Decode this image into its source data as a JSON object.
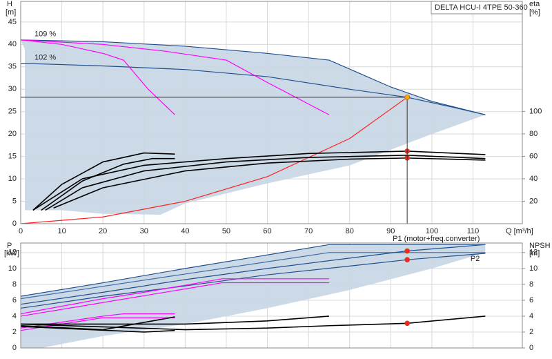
{
  "chart_data": [
    {
      "type": "line",
      "title": "DELTA HCU-I 4TPE 50-360",
      "y_label": "H",
      "y_unit": "[m]",
      "y2_label": "eta",
      "y2_unit": "[%]",
      "x_label": "Q [m³/h]",
      "xlim": [
        0,
        122
      ],
      "xticks": [
        0,
        10,
        20,
        30,
        40,
        50,
        60,
        70,
        80,
        90,
        100,
        110
      ],
      "ylim": [
        0,
        49.6
      ],
      "yticks": [
        0,
        5,
        10,
        15,
        20,
        25,
        30,
        35,
        40,
        45
      ],
      "y2lim": [
        0,
        198
      ],
      "y2ticks": [
        20,
        40,
        60,
        80,
        100
      ],
      "grid": true,
      "series": [
        {
          "type": "area",
          "color": "#c9d7e5",
          "x": [
            0,
            20,
            40,
            60,
            75,
            90,
            100,
            113,
            100,
            80,
            60,
            40,
            34,
            20,
            10,
            1,
            1
          ],
          "values": [
            41,
            40.6,
            39.6,
            38,
            36.5,
            30.5,
            27.3,
            24.3,
            20,
            13,
            9,
            4.5,
            2,
            2.2,
            3,
            3,
            39
          ]
        },
        {
          "type": "line",
          "name": "109 %",
          "label_position": "start",
          "color": "#1f4e8c",
          "x": [
            0,
            20,
            40,
            60,
            75,
            90,
            100,
            113
          ],
          "values": [
            41,
            40.6,
            39.6,
            38,
            36.5,
            30.5,
            27.3,
            24.3
          ]
        },
        {
          "type": "line",
          "name": "102 %",
          "label_position": "start",
          "color": "#1f4e8c",
          "x": [
            0,
            20,
            40,
            60,
            80,
            94,
            105,
            113
          ],
          "values": [
            35.8,
            35.2,
            34.4,
            32.8,
            30,
            28.2,
            26,
            24.3
          ]
        },
        {
          "type": "line",
          "color": "#ff00ff",
          "x": [
            0,
            10,
            20,
            25,
            31,
            37.5
          ],
          "values": [
            41,
            40,
            38,
            36.5,
            30,
            24.3
          ]
        },
        {
          "type": "line",
          "color": "#ff00ff",
          "x": [
            0,
            20,
            35,
            50,
            60,
            75
          ],
          "values": [
            41,
            40,
            38.5,
            36.5,
            31.5,
            24.3
          ]
        },
        {
          "type": "line",
          "color": "#ff2020",
          "x": [
            0,
            20,
            40,
            60,
            80,
            94
          ],
          "values": [
            0,
            1.5,
            5,
            10.5,
            19,
            28.2
          ]
        },
        {
          "type": "line",
          "axis": "y2",
          "color": "#000000",
          "x": [
            3,
            10,
            20,
            30,
            37.5
          ],
          "values": [
            12,
            35,
            55,
            63,
            62
          ]
        },
        {
          "type": "line",
          "axis": "y2",
          "color": "#000000",
          "x": [
            5,
            15,
            25,
            32,
            37.5
          ],
          "values": [
            12,
            38,
            53,
            58,
            58
          ]
        },
        {
          "type": "line",
          "axis": "y2",
          "color": "#000000",
          "x": [
            3,
            15,
            30,
            50,
            70,
            94,
            113
          ],
          "values": [
            12,
            40,
            52,
            58,
            62.5,
            64.6,
            61.5
          ]
        },
        {
          "type": "line",
          "axis": "y2",
          "color": "#000000",
          "x": [
            6,
            15,
            30,
            50,
            70,
            94,
            113
          ],
          "values": [
            12,
            32,
            47,
            55,
            59,
            61,
            58
          ]
        },
        {
          "type": "line",
          "axis": "y2",
          "color": "#000000",
          "x": [
            8,
            20,
            40,
            60,
            80,
            94,
            113
          ],
          "values": [
            14,
            32,
            47,
            54,
            57.5,
            58.5,
            56.6
          ]
        },
        {
          "type": "points",
          "axis": "y2",
          "color": "#ff2020",
          "x": [
            94,
            94
          ],
          "values": [
            64.6,
            58.5
          ]
        },
        {
          "type": "points",
          "droplines": true,
          "color": "#ffa500",
          "x": [
            94
          ],
          "values": [
            28.2
          ]
        }
      ]
    },
    {
      "type": "line",
      "y_label": "P",
      "y_unit": "[kW]",
      "y2_label": "NPSH",
      "y2_unit": "[m]",
      "xlim": [
        0,
        122
      ],
      "ylim": [
        0,
        13.2
      ],
      "yticks": [
        0,
        2,
        4,
        6,
        8,
        10,
        12
      ],
      "y2lim": [
        0,
        13.2
      ],
      "y2ticks": [
        0,
        2,
        4,
        6,
        8,
        10,
        12
      ],
      "grid": true,
      "series": [
        {
          "type": "area",
          "color": "#c9d7e5",
          "x": [
            0,
            20,
            40,
            60,
            75,
            113,
            113,
            100,
            80,
            60,
            40,
            20,
            5,
            0
          ],
          "values": [
            6.5,
            8.2,
            10,
            11.7,
            13,
            13,
            12,
            10,
            7.3,
            5,
            3,
            1.5,
            0,
            0
          ]
        },
        {
          "type": "line",
          "color": "#1f4e8c",
          "x": [
            0,
            20,
            40,
            60,
            75,
            113
          ],
          "values": [
            6.5,
            8.2,
            10,
            11.7,
            13,
            13
          ]
        },
        {
          "type": "line",
          "color": "#3a6aa5",
          "x": [
            0,
            40,
            75,
            113
          ],
          "values": [
            6.2,
            9.3,
            12,
            12
          ]
        },
        {
          "type": "line",
          "name": "P1 (motor+freq.converter)",
          "label_position": "end",
          "color": "#1f4e8c",
          "x": [
            0,
            20,
            40,
            60,
            80,
            94,
            113
          ],
          "values": [
            5.5,
            7,
            8.6,
            10,
            11.3,
            12.2,
            13
          ]
        },
        {
          "type": "line",
          "name": "P2",
          "label_position": "end",
          "color": "#1f4e8c",
          "x": [
            0,
            20,
            40,
            60,
            80,
            94,
            113
          ],
          "values": [
            5,
            6.5,
            7.8,
            9.2,
            10.3,
            11.1,
            11.9
          ]
        },
        {
          "type": "line",
          "color": "#ff00ff",
          "x": [
            0,
            20,
            30,
            49,
            75
          ],
          "values": [
            4.3,
            6.2,
            7,
            8.7,
            8.7
          ]
        },
        {
          "type": "line",
          "color": "#ff00ff",
          "x": [
            0,
            49,
            75
          ],
          "values": [
            4,
            8.2,
            8.2
          ]
        },
        {
          "type": "line",
          "color": "#ff00ff",
          "x": [
            0,
            20,
            25,
            37.5
          ],
          "values": [
            2.5,
            4,
            4.3,
            4.3
          ]
        },
        {
          "type": "line",
          "color": "#ff00ff",
          "x": [
            0,
            20,
            37.5
          ],
          "values": [
            2.2,
            3.8,
            3.8
          ]
        },
        {
          "type": "line",
          "axis": "y2",
          "color": "#000000",
          "x": [
            0,
            40,
            60,
            75
          ],
          "values": [
            3,
            3,
            3.4,
            4
          ]
        },
        {
          "type": "line",
          "axis": "y2",
          "color": "#000000",
          "x": [
            0,
            40,
            60,
            75,
            94,
            113
          ],
          "values": [
            3,
            2.3,
            2.5,
            2.8,
            3.1,
            4
          ]
        },
        {
          "type": "line",
          "axis": "y2",
          "color": "#000000",
          "x": [
            0,
            20,
            37.5
          ],
          "values": [
            2.8,
            2.3,
            3.9
          ]
        },
        {
          "type": "line",
          "axis": "y2",
          "color": "#000000",
          "x": [
            0,
            30,
            37.5
          ],
          "values": [
            2.7,
            2,
            2.2
          ]
        },
        {
          "type": "points",
          "color": "#ff2020",
          "x": [
            94,
            94
          ],
          "values": [
            12.2,
            11.1
          ]
        },
        {
          "type": "points",
          "axis": "y2",
          "color": "#ff2020",
          "x": [
            94
          ],
          "values": [
            3.1
          ]
        }
      ]
    }
  ]
}
